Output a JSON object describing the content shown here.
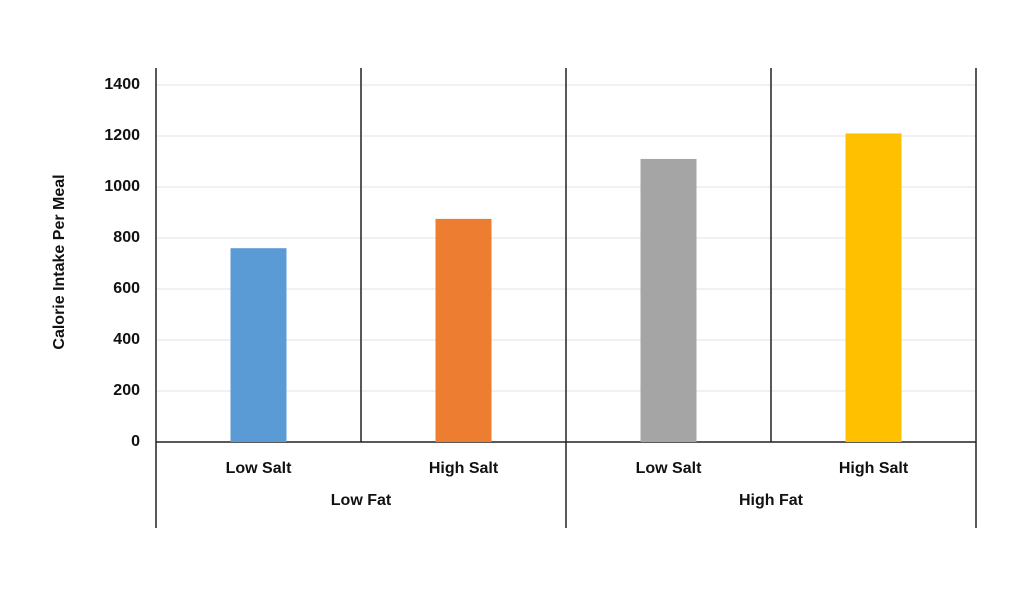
{
  "chart_data": {
    "type": "bar",
    "y_label": "Calorie Intake Per Meal",
    "categories": [
      "Low Salt",
      "High Salt",
      "Low Salt",
      "High Salt"
    ],
    "groups": [
      "Low Fat",
      "High Fat"
    ],
    "values": [
      760,
      875,
      1110,
      1210
    ],
    "colors": [
      "#5b9bd5",
      "#ed7d31",
      "#a5a5a5",
      "#ffc000"
    ],
    "ylim": [
      0,
      1400
    ],
    "yticks": [
      0,
      200,
      400,
      600,
      800,
      1000,
      1200,
      1400
    ],
    "grid": true
  }
}
